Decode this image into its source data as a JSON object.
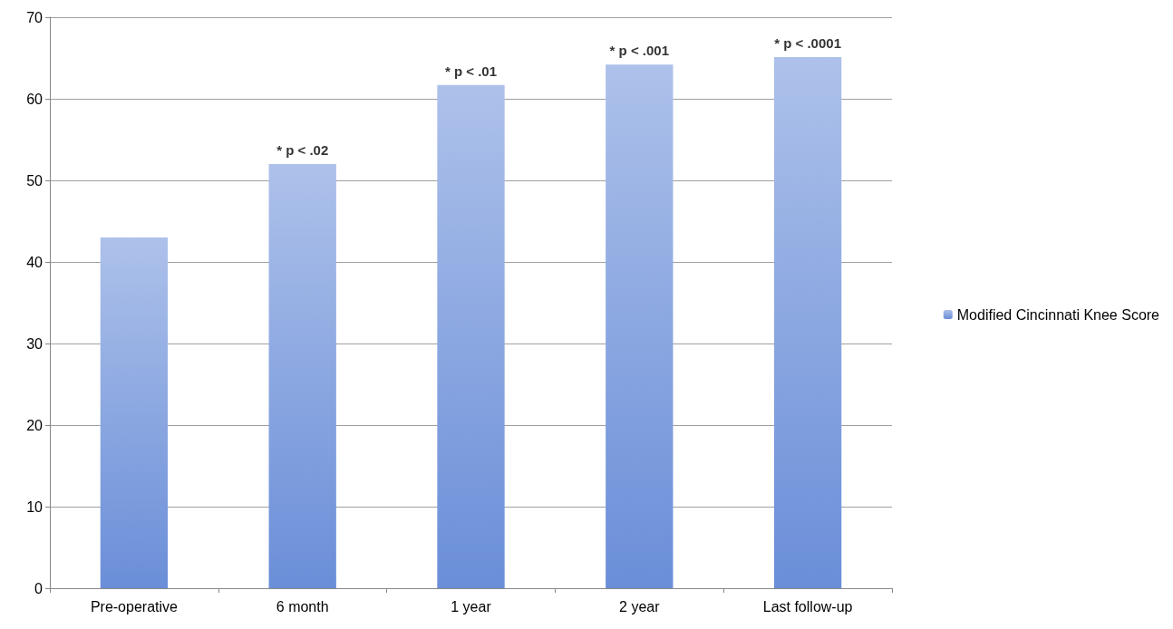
{
  "chart_data": {
    "type": "bar",
    "categories": [
      "Pre-operative",
      "6 month",
      "1 year",
      "2 year",
      "Last follow-up"
    ],
    "series": [
      {
        "name": "Modified Cincinnati Knee Score",
        "color": "#6a8ed8",
        "values": [
          43,
          52,
          61.7,
          64.2,
          65.1
        ]
      }
    ],
    "ylim": [
      0,
      70
    ],
    "yticks": [
      0,
      10,
      20,
      30,
      40,
      50,
      60,
      70
    ],
    "grid": "y",
    "legend": "right",
    "annotations": [
      {
        "text": "* p < .02",
        "x": "6 month",
        "y": 52
      },
      {
        "text": "* p < .01",
        "x": "1 year",
        "y": 61.7
      },
      {
        "text": "* p < .001",
        "x": "2 year",
        "y": 64.2
      },
      {
        "text": "* p < .0001",
        "x": "Last follow-up",
        "y": 65.1
      }
    ]
  }
}
